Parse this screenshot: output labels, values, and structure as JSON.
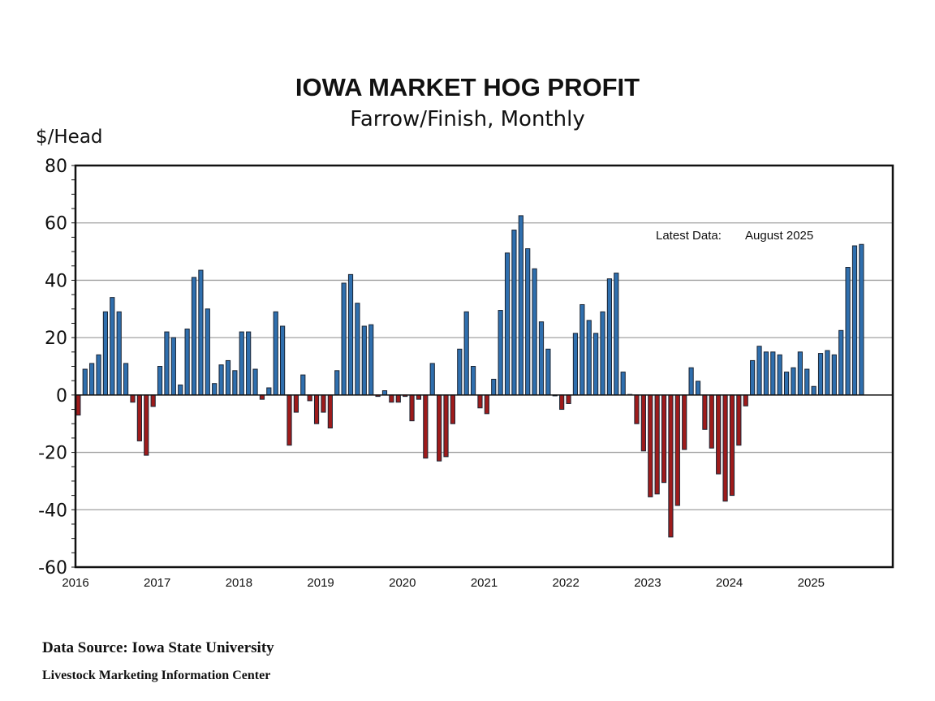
{
  "chart_data": {
    "type": "bar",
    "title": "IOWA MARKET HOG PROFIT",
    "subtitle": "Farrow/Finish, Monthly",
    "ylabel": "$/Head",
    "xlabel": "",
    "ylim": [
      -60,
      80
    ],
    "yticks": [
      80,
      60,
      40,
      20,
      0,
      -20,
      -40,
      -60
    ],
    "xtick_labels": [
      "2016",
      "2017",
      "2018",
      "2019",
      "2020",
      "2021",
      "2022",
      "2023",
      "2024",
      "2025"
    ],
    "grid": true,
    "annotation": {
      "label": "Latest Data:",
      "value": "August 2025"
    },
    "colors": {
      "positive": "#2f6fae",
      "negative": "#9e1b1b",
      "outline": "#1a2433"
    },
    "start": "2016-01",
    "end": "2025-08",
    "values": [
      -7,
      9,
      11,
      14,
      29,
      34,
      29,
      11,
      -2.5,
      -16,
      -21,
      -4,
      10,
      22,
      20,
      3.5,
      23,
      41,
      43.5,
      30,
      4,
      10.5,
      12,
      8.5,
      22,
      22,
      9,
      -1.5,
      2.5,
      29,
      24,
      -17.5,
      -6,
      7,
      -2,
      -10,
      -6,
      -11.5,
      8.5,
      39,
      42,
      32,
      24,
      24.5,
      -0.5,
      1.5,
      -2.5,
      -2.5,
      -0.5,
      -9,
      -1.5,
      -22,
      11,
      -23,
      -21.5,
      -10,
      16,
      29,
      10,
      -4.5,
      -6.5,
      5.5,
      29.5,
      49.5,
      57.5,
      62.5,
      51,
      44,
      25.5,
      16,
      -0.3,
      -5,
      -3,
      21.5,
      31.5,
      26,
      21.5,
      29,
      40.5,
      42.5,
      8,
      0.2,
      -10,
      -19.5,
      -35.5,
      -34.5,
      -30.5,
      -49.5,
      -38.5,
      -19,
      9.5,
      4.8,
      -12,
      -18.5,
      -27.5,
      -37,
      -35,
      -17.5,
      -3.8,
      12,
      17,
      15,
      15,
      14,
      8,
      9.5,
      15,
      9,
      3,
      14.5,
      15.5,
      14,
      22.5,
      44.5,
      52,
      52.5
    ]
  },
  "footer": {
    "source": "Data Source:  Iowa State University",
    "org": "Livestock Marketing Information Center"
  }
}
